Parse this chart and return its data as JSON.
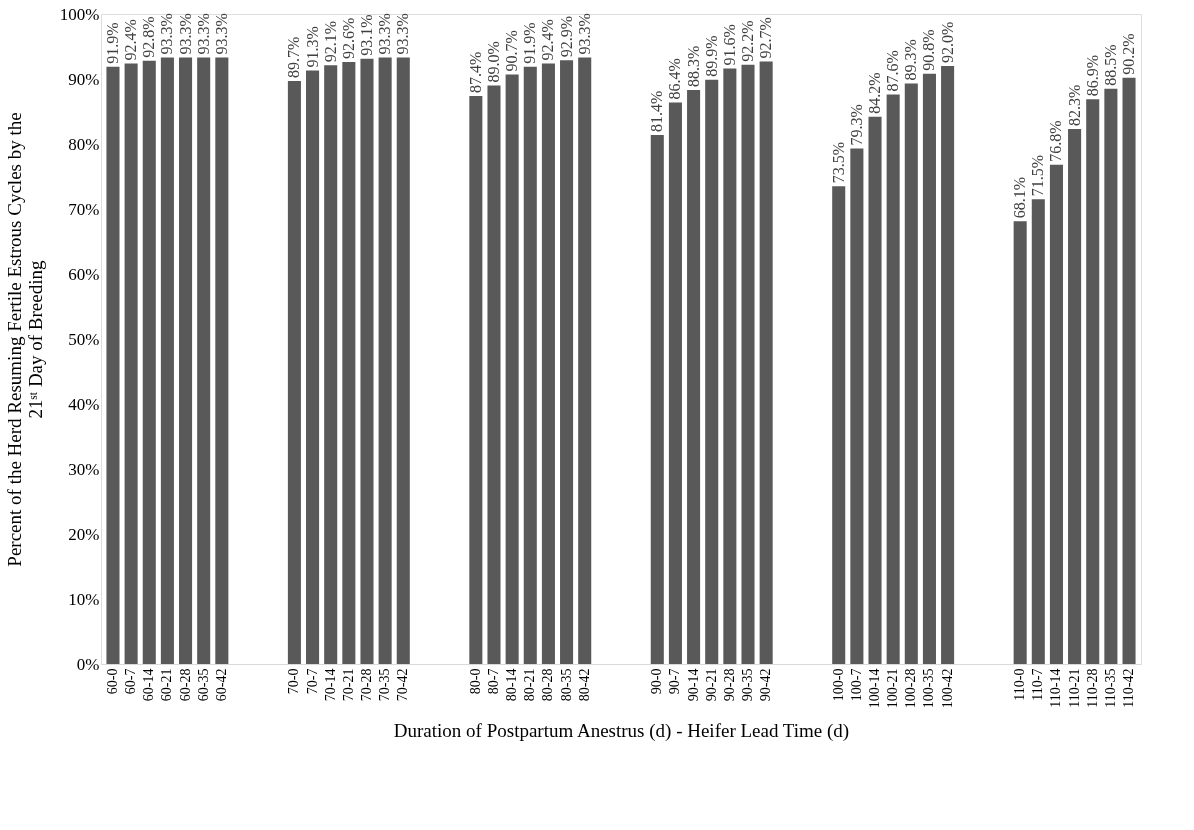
{
  "chart_data": {
    "type": "bar",
    "xlabel": "Duration of Postpartum Anestrus (d) - Heifer Lead Time (d)",
    "ylabel": "Percent of the Herd Resuming Fertile Estrous Cycles by the\n21ˢᵗ Day of Breeding",
    "categories": [
      "60-0",
      "60-7",
      "60-14",
      "60-21",
      "60-28",
      "60-35",
      "60-42",
      null,
      null,
      null,
      "70-0",
      "70-7",
      "70-14",
      "70-21",
      "70-28",
      "70-35",
      "70-42",
      null,
      null,
      null,
      "80-0",
      "80-7",
      "80-14",
      "80-21",
      "80-28",
      "80-35",
      "80-42",
      null,
      null,
      null,
      "90-0",
      "90-7",
      "90-14",
      "90-21",
      "90-28",
      "90-35",
      "90-42",
      null,
      null,
      null,
      "100-0",
      "100-7",
      "100-14",
      "100-21",
      "100-28",
      "100-35",
      "100-42",
      null,
      null,
      null,
      "110-0",
      "110-7",
      "110-14",
      "110-21",
      "110-28",
      "110-35",
      "110-42"
    ],
    "values": [
      91.9,
      92.4,
      92.8,
      93.3,
      93.3,
      93.3,
      93.3,
      null,
      null,
      null,
      89.7,
      91.3,
      92.1,
      92.6,
      93.1,
      93.3,
      93.3,
      null,
      null,
      null,
      87.4,
      89.0,
      90.7,
      91.9,
      92.4,
      92.9,
      93.3,
      null,
      null,
      null,
      81.4,
      86.4,
      88.3,
      89.9,
      91.6,
      92.2,
      92.7,
      null,
      null,
      null,
      73.5,
      79.3,
      84.2,
      87.6,
      89.3,
      90.8,
      92.0,
      null,
      null,
      null,
      68.1,
      71.5,
      76.8,
      82.3,
      86.9,
      88.5,
      90.2
    ],
    "value_labels": [
      "91.9%",
      "92.4%",
      "92.8%",
      "93.3%",
      "93.3%",
      "93.3%",
      "93.3%",
      null,
      null,
      null,
      "89.7%",
      "91.3%",
      "92.1%",
      "92.6%",
      "93.1%",
      "93.3%",
      "93.3%",
      null,
      null,
      null,
      "87.4%",
      "89.0%",
      "90.7%",
      "91.9%",
      "92.4%",
      "92.9%",
      "93.3%",
      null,
      null,
      null,
      "81.4%",
      "86.4%",
      "88.3%",
      "89.9%",
      "91.6%",
      "92.2%",
      "92.7%",
      null,
      null,
      null,
      "73.5%",
      "79.3%",
      "84.2%",
      "87.6%",
      "89.3%",
      "90.8%",
      "92.0%",
      null,
      null,
      null,
      "68.1%",
      "71.5%",
      "76.8%",
      "82.3%",
      "86.9%",
      "88.5%",
      "90.2%"
    ],
    "color": "#595959",
    "ylim": [
      0,
      100
    ],
    "yticks": [
      {
        "value": 0,
        "label": "0%"
      },
      {
        "value": 10,
        "label": "10%"
      },
      {
        "value": 20,
        "label": "20%"
      },
      {
        "value": 30,
        "label": "30%"
      },
      {
        "value": 40,
        "label": "40%"
      },
      {
        "value": 50,
        "label": "50%"
      },
      {
        "value": 60,
        "label": "60%"
      },
      {
        "value": 70,
        "label": "70%"
      },
      {
        "value": 80,
        "label": "80%"
      },
      {
        "value": 90,
        "label": "90%"
      },
      {
        "value": 100,
        "label": "100%"
      }
    ],
    "grid": false
  }
}
